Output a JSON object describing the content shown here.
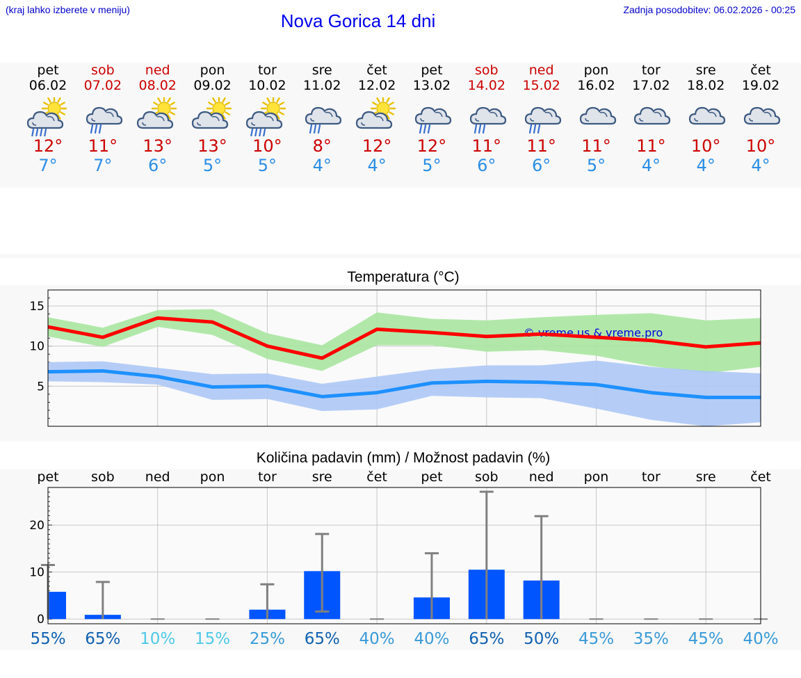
{
  "header": {
    "hint": "(kraj lahko izberete v meniju)",
    "title": "Nova Gorica 14 dni",
    "updated": "Zadnja posodobitev: 06.02.2026 - 00:25"
  },
  "days": [
    {
      "name": "pet",
      "date": "06.02",
      "weekend": false,
      "icon": "sun-cloud-rain-icon",
      "max": "12°",
      "min": "7°"
    },
    {
      "name": "sob",
      "date": "07.02",
      "weekend": true,
      "icon": "cloud-rain-icon",
      "max": "11°",
      "min": "7°"
    },
    {
      "name": "ned",
      "date": "08.02",
      "weekend": true,
      "icon": "sun-cloud-icon",
      "max": "13°",
      "min": "6°"
    },
    {
      "name": "pon",
      "date": "09.02",
      "weekend": false,
      "icon": "sun-cloud-icon",
      "max": "13°",
      "min": "5°"
    },
    {
      "name": "tor",
      "date": "10.02",
      "weekend": false,
      "icon": "sun-cloud-rain-icon",
      "max": "10°",
      "min": "5°"
    },
    {
      "name": "sre",
      "date": "11.02",
      "weekend": false,
      "icon": "cloud-rain-icon",
      "max": "8°",
      "min": "4°"
    },
    {
      "name": "čet",
      "date": "12.02",
      "weekend": false,
      "icon": "sun-cloud-icon",
      "max": "12°",
      "min": "4°"
    },
    {
      "name": "pet",
      "date": "13.02",
      "weekend": false,
      "icon": "cloud-rain-icon",
      "max": "12°",
      "min": "5°"
    },
    {
      "name": "sob",
      "date": "14.02",
      "weekend": true,
      "icon": "cloud-rain-icon",
      "max": "11°",
      "min": "6°"
    },
    {
      "name": "ned",
      "date": "15.02",
      "weekend": true,
      "icon": "cloud-rain-icon",
      "max": "11°",
      "min": "6°"
    },
    {
      "name": "pon",
      "date": "16.02",
      "weekend": false,
      "icon": "cloud-icon",
      "max": "11°",
      "min": "5°"
    },
    {
      "name": "tor",
      "date": "17.02",
      "weekend": false,
      "icon": "cloud-icon",
      "max": "11°",
      "min": "4°"
    },
    {
      "name": "sre",
      "date": "18.02",
      "weekend": false,
      "icon": "cloud-icon",
      "max": "10°",
      "min": "4°"
    },
    {
      "name": "čet",
      "date": "19.02",
      "weekend": false,
      "icon": "cloud-icon",
      "max": "10°",
      "min": "4°"
    }
  ],
  "colors": {
    "max": "#ff0000",
    "min": "#1e90ff",
    "max_band": "#a8e6a0",
    "min_band": "#adc8f5",
    "bar": "#0055ff",
    "error": "#808080"
  },
  "chart_data": [
    {
      "type": "line",
      "title": "Temperatura (°C)",
      "watermark": "© vreme.us & vreme.pro",
      "ylim": [
        0,
        17
      ],
      "yticks": [
        5,
        10,
        15
      ],
      "grid": true,
      "series": [
        {
          "name": "max",
          "values": [
            12.4,
            11.1,
            13.5,
            13.0,
            10.0,
            8.5,
            12.1,
            11.7,
            11.2,
            11.5,
            11.1,
            10.7,
            9.9,
            10.4
          ],
          "band_low": [
            11.2,
            9.9,
            12.4,
            11.4,
            8.4,
            6.9,
            10.1,
            10.1,
            9.3,
            9.5,
            8.8,
            7.5,
            6.6,
            7.4
          ],
          "band_high": [
            13.6,
            12.3,
            14.5,
            14.6,
            11.6,
            10.1,
            14.2,
            13.4,
            13.2,
            13.6,
            13.9,
            14.1,
            13.2,
            13.5
          ]
        },
        {
          "name": "min",
          "values": [
            6.8,
            6.9,
            6.2,
            4.9,
            5.0,
            3.7,
            4.2,
            5.4,
            5.6,
            5.5,
            5.2,
            4.2,
            3.6,
            3.6
          ],
          "band_low": [
            5.6,
            5.5,
            5.2,
            3.3,
            3.4,
            1.9,
            2.1,
            3.8,
            3.6,
            3.5,
            2.2,
            0.8,
            0.0,
            0.5
          ],
          "band_high": [
            8.0,
            8.1,
            7.3,
            6.5,
            6.6,
            5.3,
            6.2,
            7.1,
            7.6,
            7.6,
            8.2,
            7.4,
            6.9,
            6.6
          ]
        }
      ]
    },
    {
      "type": "bar",
      "title": "Količina padavin (mm) / Možnost padavin (%)",
      "categories": [
        "pet",
        "sob",
        "ned",
        "pon",
        "tor",
        "sre",
        "čet",
        "pet",
        "sob",
        "ned",
        "pon",
        "tor",
        "sre",
        "čet"
      ],
      "values": [
        5.8,
        0.9,
        0,
        0,
        2.0,
        10.2,
        0,
        4.6,
        10.5,
        8.2,
        0,
        0,
        0,
        0
      ],
      "error_low": [
        0.0,
        0.0,
        0,
        0,
        0.0,
        1.6,
        0,
        0.0,
        0.0,
        0.0,
        0,
        0,
        0,
        0
      ],
      "error_high": [
        11.5,
        7.9,
        0,
        0,
        7.4,
        18.1,
        0,
        14.0,
        27.1,
        21.9,
        0,
        0,
        0,
        0
      ],
      "probability": [
        "55%",
        "65%",
        "10%",
        "15%",
        "25%",
        "65%",
        "40%",
        "40%",
        "65%",
        "50%",
        "45%",
        "35%",
        "45%",
        "40%"
      ],
      "probability_values": [
        55,
        65,
        10,
        15,
        25,
        65,
        40,
        40,
        65,
        50,
        45,
        35,
        45,
        40
      ],
      "ylim": [
        -1,
        28
      ],
      "yticks": [
        0,
        10,
        20
      ],
      "grid": true
    }
  ]
}
